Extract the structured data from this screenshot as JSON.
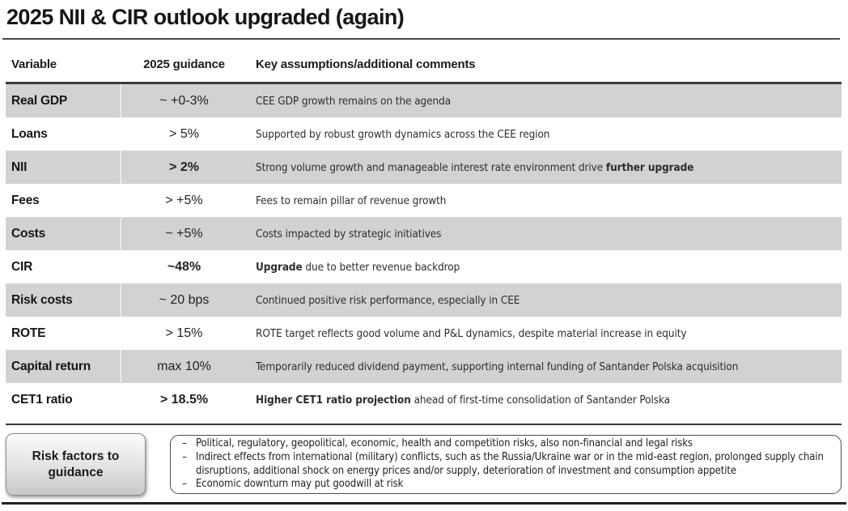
{
  "title": "2025 NII & CIR outlook upgraded (again)",
  "table": {
    "headers": [
      "Variable",
      "2025 guidance",
      "Key assumptions/additional comments"
    ],
    "rows": [
      {
        "variable": "Real GDP",
        "guidance": "~ +0-3%",
        "guidance_bold": false,
        "comment": [
          {
            "text": "CEE GDP growth remains on the agenda",
            "bold": false
          }
        ]
      },
      {
        "variable": "Loans",
        "guidance": "> 5%",
        "guidance_bold": false,
        "comment": [
          {
            "text": "Supported by robust growth dynamics across the CEE region",
            "bold": false
          }
        ]
      },
      {
        "variable": "NII",
        "guidance": "> 2%",
        "guidance_bold": true,
        "comment": [
          {
            "text": "Strong volume growth and manageable interest rate environment drive ",
            "bold": false
          },
          {
            "text": "further upgrade",
            "bold": true
          }
        ]
      },
      {
        "variable": "Fees",
        "guidance": "> +5%",
        "guidance_bold": false,
        "comment": [
          {
            "text": "Fees to remain pillar of revenue growth",
            "bold": false
          }
        ]
      },
      {
        "variable": "Costs",
        "guidance": "~ +5%",
        "guidance_bold": false,
        "comment": [
          {
            "text": "Costs impacted by strategic initiatives",
            "bold": false
          }
        ]
      },
      {
        "variable": "CIR",
        "guidance": "~48%",
        "guidance_bold": true,
        "comment": [
          {
            "text": "Upgrade",
            "bold": true
          },
          {
            "text": " due to better revenue backdrop",
            "bold": false
          }
        ]
      },
      {
        "variable": "Risk costs",
        "guidance": "~ 20 bps",
        "guidance_bold": false,
        "comment": [
          {
            "text": "Continued positive risk performance, especially in CEE",
            "bold": false
          }
        ]
      },
      {
        "variable": "ROTE",
        "guidance": "> 15%",
        "guidance_bold": false,
        "comment": [
          {
            "text": "ROTE target reflects good volume and P&L dynamics, despite material increase in equity",
            "bold": false
          }
        ]
      },
      {
        "variable": "Capital return",
        "guidance": "max 10%",
        "guidance_bold": false,
        "comment": [
          {
            "text": "Temporarily reduced dividend payment, supporting internal funding of Santander Polska acquisition",
            "bold": false
          }
        ]
      },
      {
        "variable": "CET1 ratio",
        "guidance": "> 18.5%",
        "guidance_bold": true,
        "comment": [
          {
            "text": "Higher CET1 ratio projection",
            "bold": true
          },
          {
            "text": " ahead of first-time consolidation of Santander Polska",
            "bold": false
          }
        ]
      }
    ]
  },
  "risk_box": {
    "button_label": "Risk factors to guidance",
    "bullet_marker": "–",
    "bullets": [
      "Political, regulatory, geopolitical, economic, health and competition risks, also non-financial and legal risks",
      "Indirect effects from international (military) conflicts, such as the Russia/Ukraine war or in the mid-east region, prolonged supply chain disruptions, additional shock on energy prices and/or supply, deterioration of investment and consumption appetite",
      "Economic downturn may put goodwill at risk"
    ]
  },
  "colors": {
    "row_shade": "#d2d2d2",
    "rule_dark": "#3a3a3a",
    "text_dark": "#1a1a1a"
  }
}
